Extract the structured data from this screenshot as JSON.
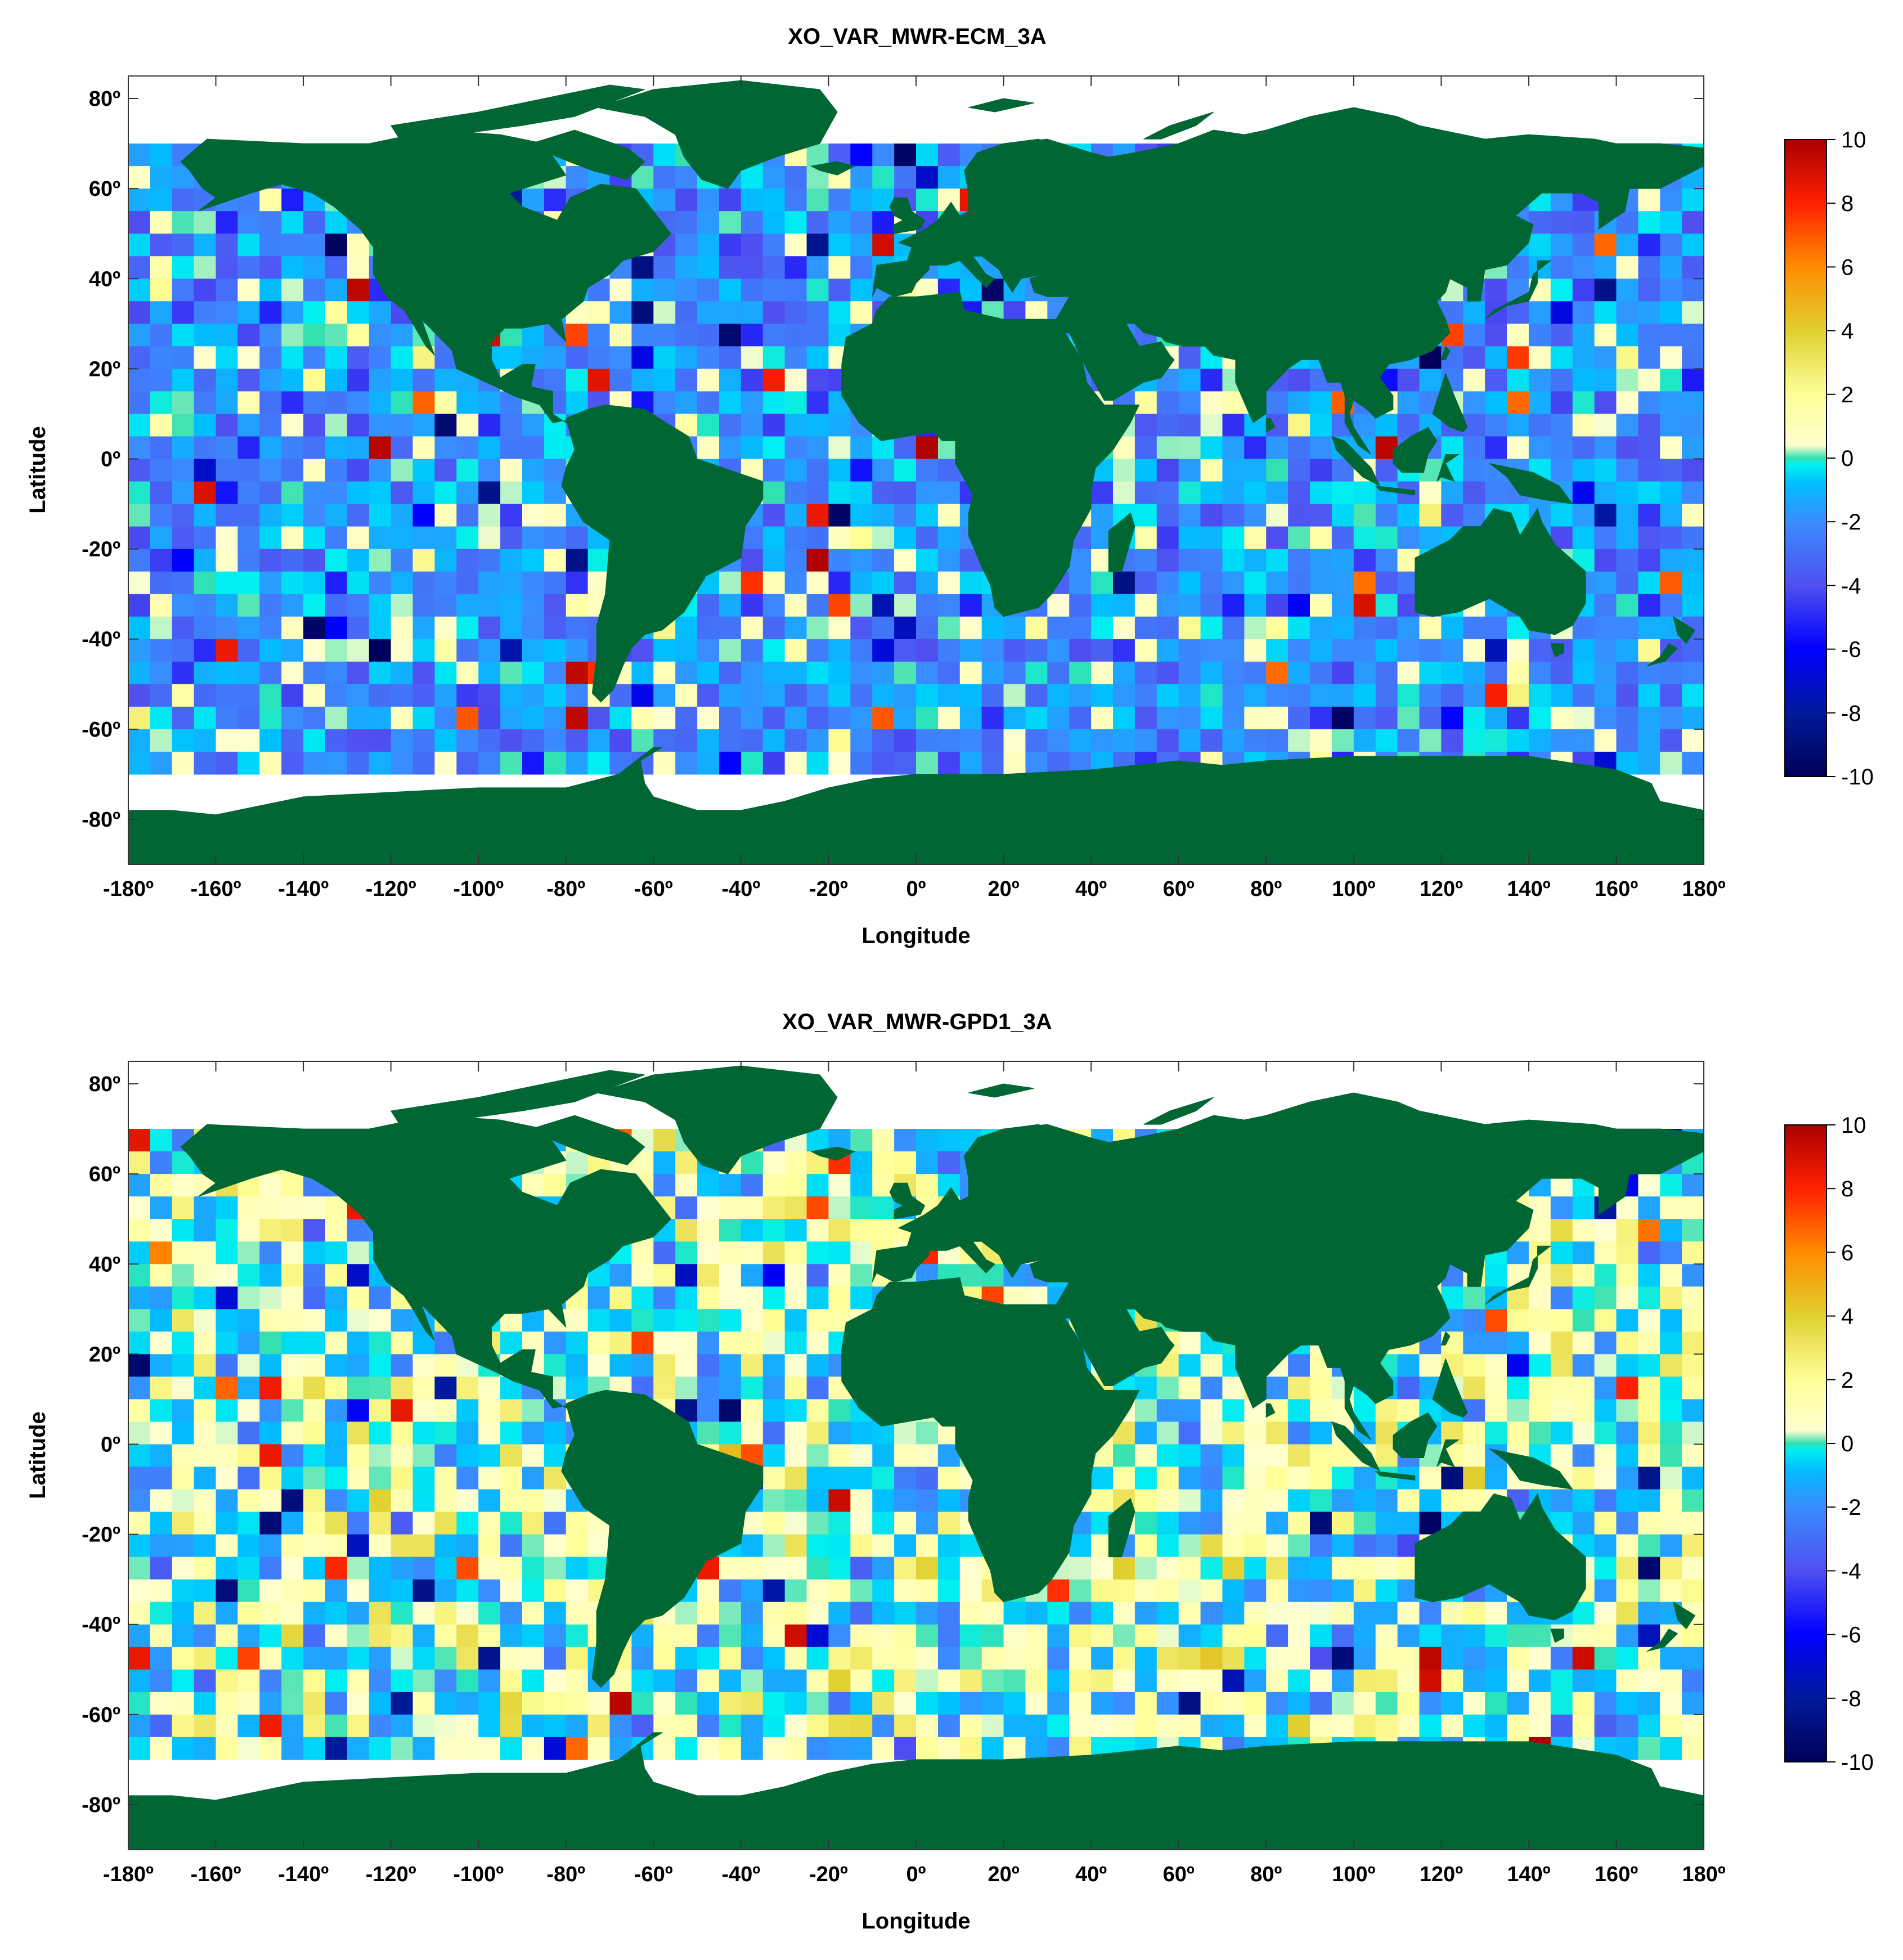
{
  "chart_data": [
    {
      "type": "heatmap",
      "title": "XO_VAR_MWR-ECM_3A",
      "xlabel": "Longitude",
      "ylabel": "Latitude",
      "xlim": [
        -180,
        180
      ],
      "ylim": [
        -90,
        85
      ],
      "x_ticks": [
        "-180º",
        "-160º",
        "-140º",
        "-120º",
        "-100º",
        "-80º",
        "-60º",
        "-40º",
        "-20º",
        "0º",
        "20º",
        "40º",
        "60º",
        "80º",
        "100º",
        "120º",
        "140º",
        "160º",
        "180º"
      ],
      "y_ticks": [
        "80º",
        "60º",
        "40º",
        "20º",
        "0º",
        "-20º",
        "-40º",
        "-60º",
        "-80º"
      ],
      "data_extent": {
        "lat": [
          -70,
          70
        ],
        "cell_deg": 5
      },
      "colorbar": {
        "range": [
          -10,
          10
        ],
        "ticks": [
          "10",
          "8",
          "6",
          "4",
          "2",
          "0",
          "-2",
          "-4",
          "-6",
          "-8",
          "-10"
        ]
      },
      "bias": -1.6,
      "seed": 17,
      "land_color": "#006633"
    },
    {
      "type": "heatmap",
      "title": "XO_VAR_MWR-GPD1_3A",
      "xlabel": "Longitude",
      "ylabel": "Latitude",
      "xlim": [
        -180,
        180
      ],
      "ylim": [
        -90,
        85
      ],
      "x_ticks": [
        "-180º",
        "-160º",
        "-140º",
        "-120º",
        "-100º",
        "-80º",
        "-60º",
        "-40º",
        "-20º",
        "0º",
        "20º",
        "40º",
        "60º",
        "80º",
        "100º",
        "120º",
        "140º",
        "160º",
        "180º"
      ],
      "y_ticks": [
        "80º",
        "60º",
        "40º",
        "20º",
        "0º",
        "-20º",
        "-40º",
        "-60º",
        "-80º"
      ],
      "data_extent": {
        "lat": [
          -70,
          70
        ],
        "cell_deg": 5
      },
      "colorbar": {
        "range": [
          -10,
          10
        ],
        "ticks": [
          "10",
          "8",
          "6",
          "4",
          "2",
          "0",
          "-2",
          "-4",
          "-6",
          "-8",
          "-10"
        ]
      },
      "bias": 0.2,
      "seed": 91,
      "land_color": "#006633"
    }
  ]
}
